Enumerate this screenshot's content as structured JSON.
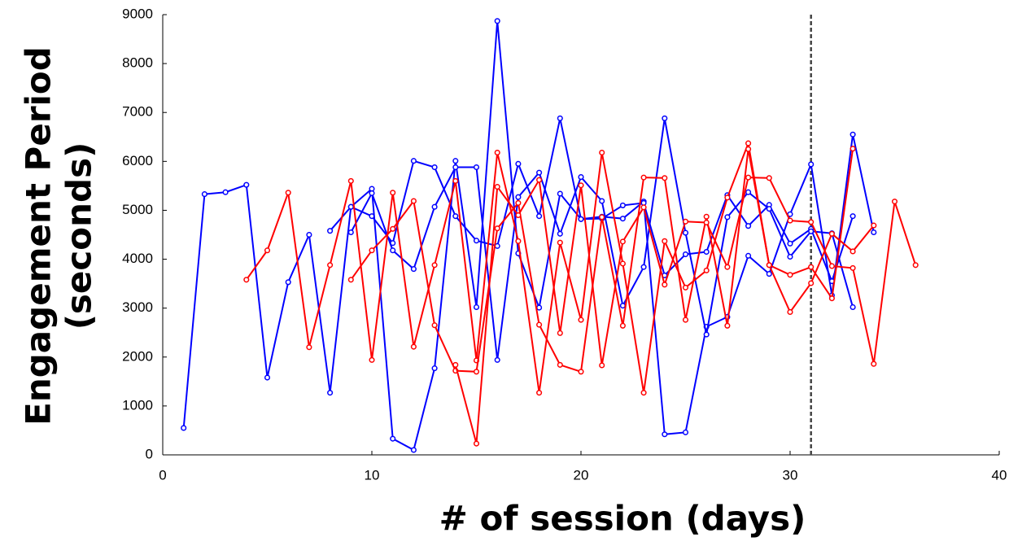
{
  "chart_data": {
    "type": "line",
    "xlabel": "# of session (days)",
    "ylabel": [
      "Engagement Period",
      "(seconds)"
    ],
    "xlim": [
      0,
      40
    ],
    "ylim": [
      0,
      9000
    ],
    "xticks": [
      0,
      10,
      20,
      30,
      40
    ],
    "yticks": [
      0,
      1000,
      2000,
      3000,
      4000,
      5000,
      6000,
      7000,
      8000,
      9000
    ],
    "grid": false,
    "reference_line": {
      "x": 31,
      "color": "#444444"
    },
    "series": [
      {
        "color": "#0000ff",
        "x": [
          1,
          2,
          3,
          4,
          5,
          6,
          7,
          8,
          9,
          10,
          11,
          12,
          13,
          14,
          15,
          16,
          17,
          18,
          19,
          20,
          21,
          22,
          23,
          24,
          25,
          26,
          27,
          28,
          29,
          30,
          31,
          32,
          33,
          34
        ],
        "values": [
          550,
          5330,
          5370,
          5520,
          1580,
          3530,
          4500,
          1270,
          5070,
          4880,
          4330,
          6010,
          5880,
          4880,
          4380,
          4270,
          5950,
          4880,
          6880,
          4820,
          4870,
          4830,
          5180,
          420,
          460,
          2620,
          2820,
          4070,
          3700,
          4920,
          5940,
          3260,
          6550,
          4550
        ]
      },
      {
        "color": "#0000ff",
        "x": [
          8,
          9,
          10,
          11,
          12,
          13,
          14,
          15,
          16,
          17,
          18,
          19,
          20,
          21,
          22,
          23,
          24,
          25,
          26,
          27,
          28,
          29,
          30,
          31,
          32,
          33
        ],
        "values": [
          4580,
          5070,
          5440,
          330,
          100,
          1770,
          6010,
          3020,
          8870,
          4120,
          3010,
          5340,
          4820,
          4830,
          5100,
          5150,
          3670,
          4100,
          4150,
          5310,
          4680,
          5110,
          4320,
          4620,
          3550,
          4880
        ]
      },
      {
        "color": "#0000ff",
        "x": [
          9,
          10,
          11,
          12,
          13,
          14,
          15,
          16,
          17,
          18,
          19,
          20,
          21,
          22,
          23,
          24,
          25,
          26,
          27,
          28,
          29,
          30,
          31,
          32,
          33
        ],
        "values": [
          4550,
          5350,
          4180,
          3800,
          5070,
          5880,
          5880,
          1940,
          5270,
          5770,
          4520,
          5680,
          5190,
          3050,
          3840,
          6880,
          4540,
          2460,
          4860,
          5370,
          5030,
          4050,
          4570,
          4530,
          3020
        ]
      },
      {
        "color": "#ff0000",
        "x": [
          4,
          5,
          6,
          7,
          8,
          9,
          10,
          11,
          12,
          13,
          14,
          15,
          16,
          17,
          18,
          19,
          20,
          21,
          22,
          23,
          24,
          25,
          26,
          27,
          28,
          29,
          30,
          31,
          32,
          33
        ],
        "values": [
          3580,
          4180,
          5360,
          2200,
          3880,
          5600,
          1940,
          5360,
          2210,
          3880,
          5600,
          1930,
          6180,
          4370,
          1270,
          4340,
          2760,
          6180,
          3910,
          1270,
          4370,
          3420,
          3770,
          5260,
          6370,
          3880,
          3680,
          3840,
          3200,
          6260
        ]
      },
      {
        "color": "#ff0000",
        "x": [
          9,
          10,
          11,
          12,
          13,
          14,
          15,
          16,
          17,
          18,
          19,
          20,
          21,
          22,
          23,
          24,
          25,
          26,
          27,
          28,
          29,
          30,
          31,
          32,
          33,
          34
        ],
        "values": [
          3580,
          4180,
          4620,
          5190,
          2650,
          1720,
          1700,
          4630,
          5150,
          2660,
          1840,
          1700,
          4860,
          2640,
          5670,
          5660,
          2760,
          4870,
          2640,
          6250,
          3880,
          2920,
          3510,
          4520,
          4160,
          4690
        ]
      },
      {
        "color": "#ff0000",
        "x": [
          14,
          15,
          16,
          17,
          18,
          19,
          20,
          21,
          22,
          23,
          24,
          25,
          26,
          27,
          28,
          29,
          30,
          31,
          32,
          33,
          34,
          35,
          36
        ],
        "values": [
          1840,
          230,
          5480,
          4900,
          5620,
          2490,
          5510,
          1830,
          4360,
          5060,
          3480,
          4770,
          4750,
          3840,
          5670,
          5660,
          4790,
          4760,
          3860,
          3820,
          1860,
          5180,
          3880
        ]
      }
    ]
  }
}
